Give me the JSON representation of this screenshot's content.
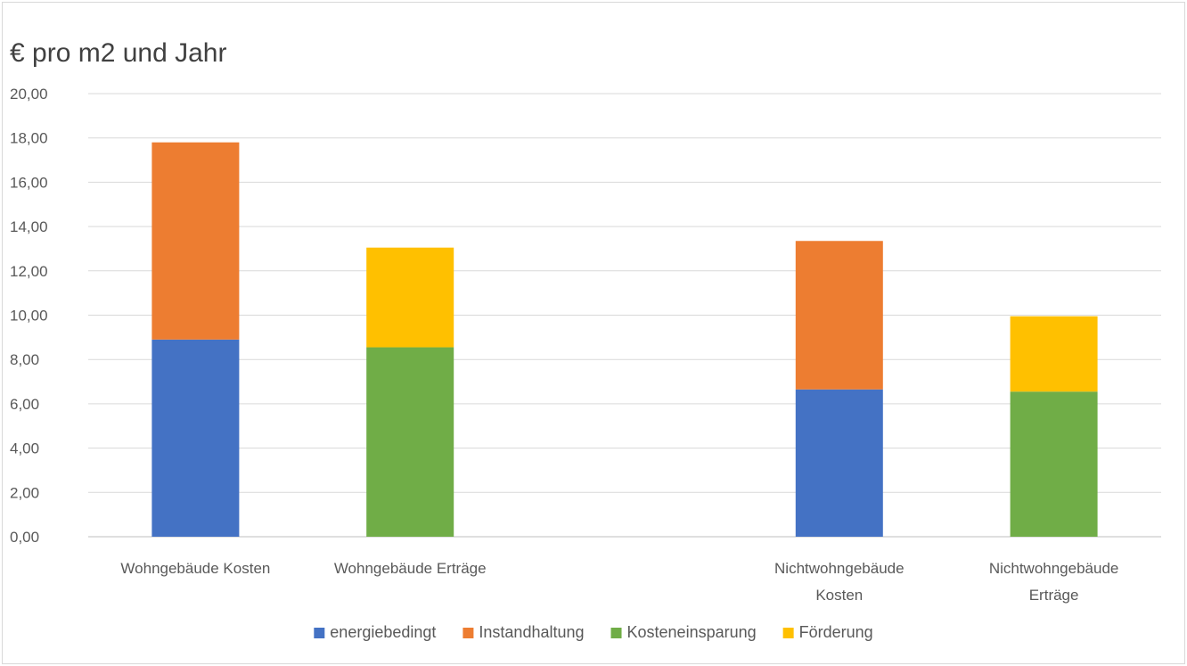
{
  "chart_data": {
    "type": "bar",
    "stacked": true,
    "title": "€ pro m2 und Jahr",
    "ylim": [
      0,
      20
    ],
    "yticks": [
      "0,00",
      "2,00",
      "4,00",
      "6,00",
      "8,00",
      "10,00",
      "12,00",
      "14,00",
      "16,00",
      "18,00",
      "20,00"
    ],
    "grid": true,
    "legend_position": "bottom",
    "categories": [
      {
        "lines": [
          "Wohngebäude Kosten"
        ]
      },
      {
        "lines": [
          "Wohngebäude Erträge"
        ]
      },
      {
        "lines": [
          ""
        ]
      },
      {
        "lines": [
          "Nichtwohngebäude",
          "Kosten"
        ]
      },
      {
        "lines": [
          "Nichtwohngebäude",
          "Erträge"
        ]
      }
    ],
    "series": [
      {
        "name": "energiebedingt",
        "color": "#4472C4",
        "values": [
          8.9,
          0,
          0,
          6.65,
          0
        ]
      },
      {
        "name": "Instandhaltung",
        "color": "#ED7D31",
        "values": [
          8.9,
          0,
          0,
          6.7,
          0
        ]
      },
      {
        "name": "Kosteneinsparung",
        "color": "#70AD47",
        "values": [
          0,
          8.55,
          0,
          0,
          6.55
        ]
      },
      {
        "name": "Förderung",
        "color": "#FFC000",
        "values": [
          0,
          4.5,
          0,
          0,
          3.4
        ]
      }
    ]
  }
}
